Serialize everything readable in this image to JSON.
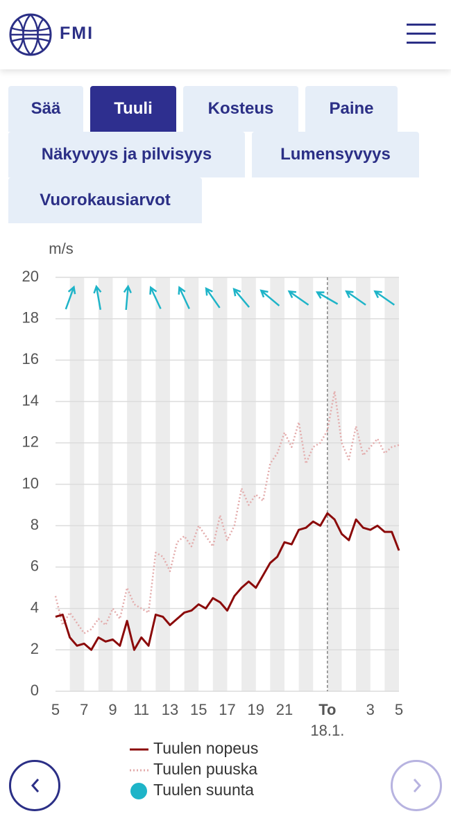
{
  "header": {
    "logo_text": "FMI"
  },
  "tabs": [
    "Sää",
    "Tuuli",
    "Kosteus",
    "Paine",
    "Näkyvyys ja pilvisyys",
    "Lumensyvyys",
    "Vuorokausiarvot"
  ],
  "active_tab": 1,
  "chart_data": {
    "type": "line",
    "y_unit_label": "m/s",
    "x": [
      5,
      5.5,
      6,
      6.5,
      7,
      7.5,
      8,
      8.5,
      9,
      9.5,
      10,
      10.5,
      11,
      11.5,
      12,
      12.5,
      13,
      13.5,
      14,
      14.5,
      15,
      15.5,
      16,
      16.5,
      17,
      17.5,
      18,
      18.5,
      19,
      19.5,
      20,
      20.5,
      21,
      21.5,
      22,
      22.5,
      23,
      23.5,
      24,
      24.5,
      25,
      25.5,
      26,
      26.5,
      27,
      27.5,
      28,
      28.5,
      29
    ],
    "series": [
      {
        "name": "Tuulen nopeus",
        "color": "#8b0a0a",
        "style": "solid",
        "values": [
          3.6,
          3.7,
          2.6,
          2.2,
          2.3,
          2.0,
          2.6,
          2.4,
          2.5,
          2.2,
          3.4,
          2.0,
          2.6,
          2.2,
          3.7,
          3.6,
          3.2,
          3.5,
          3.8,
          3.9,
          4.2,
          4.0,
          4.5,
          4.3,
          3.9,
          4.6,
          5.0,
          5.3,
          5.0,
          5.6,
          6.2,
          6.5,
          7.2,
          7.1,
          7.8,
          7.9,
          8.2,
          8.0,
          8.6,
          8.3,
          7.6,
          7.3,
          8.3,
          7.9,
          7.8,
          8.0,
          7.7,
          7.7,
          6.8
        ]
      },
      {
        "name": "Tuulen puuska",
        "color": "#e3abab",
        "style": "dotted",
        "values": [
          4.6,
          3.2,
          3.8,
          3.3,
          2.8,
          3.0,
          3.5,
          3.2,
          4.0,
          3.5,
          5.0,
          4.2,
          4.0,
          3.8,
          6.7,
          6.5,
          5.8,
          7.2,
          7.5,
          7.0,
          8.0,
          7.5,
          7.0,
          8.5,
          7.3,
          8.0,
          9.8,
          9.0,
          9.5,
          9.2,
          11.0,
          11.5,
          12.5,
          11.8,
          13.0,
          11.0,
          11.8,
          12.0,
          12.6,
          14.5,
          12.0,
          11.2,
          12.8,
          11.4,
          11.8,
          12.2,
          11.5,
          11.8,
          11.9
        ]
      },
      {
        "name": "Tuulen suunta",
        "color": "#1eb4c8",
        "style": "arrow",
        "x": [
          6,
          8,
          10,
          12,
          14,
          16,
          18,
          20,
          22,
          24,
          26,
          28
        ],
        "values": [
          200,
          170,
          185,
          155,
          155,
          145,
          140,
          130,
          125,
          120,
          125,
          125
        ]
      }
    ],
    "xlim": [
      5,
      29
    ],
    "ylim": [
      0,
      20
    ],
    "xticks": [
      5,
      7,
      9,
      11,
      13,
      15,
      17,
      19,
      21,
      {
        "value": 24,
        "label": "To"
      },
      {
        "value": 27,
        "label": "3"
      },
      {
        "value": 29,
        "label": "5"
      }
    ],
    "yticks": [
      0,
      2,
      4,
      6,
      8,
      10,
      12,
      14,
      16,
      18,
      20
    ],
    "date_label": "18.1.",
    "day_line": 24,
    "grid": true
  }
}
